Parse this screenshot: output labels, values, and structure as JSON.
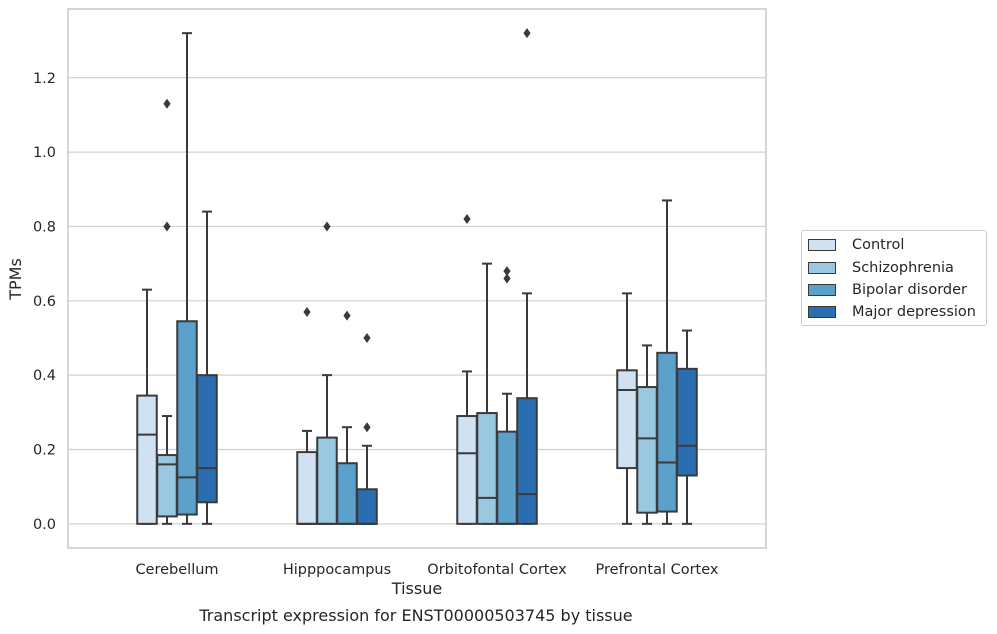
{
  "chart_data": {
    "type": "boxplot",
    "xlabel": "Tissue",
    "ylabel": "TPMs",
    "ylim": [
      -0.065,
      1.385
    ],
    "yticks": [
      0.0,
      0.2,
      0.4,
      0.6,
      0.8,
      1.0,
      1.2
    ],
    "ytick_labels": [
      "0.0",
      "0.2",
      "0.4",
      "0.6",
      "0.8",
      "1.0",
      "1.2"
    ],
    "grid": "horizontal",
    "legend_position": "right",
    "categories": [
      "Cerebellum",
      "Hipppocampus",
      "Orbitofontal Cortex",
      "Prefrontal Cortex"
    ],
    "series": [
      {
        "name": "Control",
        "color": "#d0e1f2",
        "boxes": [
          {
            "whislo": 0.0,
            "q1": 0.0,
            "med": 0.24,
            "q3": 0.345,
            "whishi": 0.63,
            "fliers": []
          },
          {
            "whislo": 0.0,
            "q1": 0.0,
            "med": 0.0,
            "q3": 0.193,
            "whishi": 0.25,
            "fliers": [
              0.57
            ]
          },
          {
            "whislo": 0.0,
            "q1": 0.0,
            "med": 0.19,
            "q3": 0.29,
            "whishi": 0.41,
            "fliers": [
              0.82
            ]
          },
          {
            "whislo": 0.0,
            "q1": 0.15,
            "med": 0.36,
            "q3": 0.413,
            "whishi": 0.62,
            "fliers": []
          }
        ]
      },
      {
        "name": "Schizophrenia",
        "color": "#9ac8e0",
        "boxes": [
          {
            "whislo": 0.0,
            "q1": 0.02,
            "med": 0.16,
            "q3": 0.185,
            "whishi": 0.29,
            "fliers": [
              0.8,
              1.13
            ]
          },
          {
            "whislo": 0.0,
            "q1": 0.0,
            "med": 0.0,
            "q3": 0.232,
            "whishi": 0.4,
            "fliers": [
              0.8
            ]
          },
          {
            "whislo": 0.0,
            "q1": 0.0,
            "med": 0.07,
            "q3": 0.298,
            "whishi": 0.7,
            "fliers": []
          },
          {
            "whislo": 0.0,
            "q1": 0.03,
            "med": 0.23,
            "q3": 0.368,
            "whishi": 0.48,
            "fliers": []
          }
        ]
      },
      {
        "name": "Bipolar disorder",
        "color": "#5b9fcb",
        "boxes": [
          {
            "whislo": 0.0,
            "q1": 0.025,
            "med": 0.125,
            "q3": 0.545,
            "whishi": 1.32,
            "fliers": []
          },
          {
            "whislo": 0.0,
            "q1": 0.0,
            "med": 0.0,
            "q3": 0.163,
            "whishi": 0.26,
            "fliers": [
              0.56
            ]
          },
          {
            "whislo": 0.0,
            "q1": 0.0,
            "med": 0.0,
            "q3": 0.248,
            "whishi": 0.35,
            "fliers": [
              0.66,
              0.68
            ]
          },
          {
            "whislo": 0.0,
            "q1": 0.033,
            "med": 0.165,
            "q3": 0.46,
            "whishi": 0.87,
            "fliers": []
          }
        ]
      },
      {
        "name": "Major depression",
        "color": "#2a6db0",
        "boxes": [
          {
            "whislo": 0.0,
            "q1": 0.058,
            "med": 0.15,
            "q3": 0.4,
            "whishi": 0.84,
            "fliers": []
          },
          {
            "whislo": 0.0,
            "q1": 0.0,
            "med": 0.0,
            "q3": 0.093,
            "whishi": 0.21,
            "fliers": [
              0.26,
              0.5
            ]
          },
          {
            "whislo": 0.0,
            "q1": 0.0,
            "med": 0.08,
            "q3": 0.338,
            "whishi": 0.62,
            "fliers": [
              1.32
            ]
          },
          {
            "whislo": 0.0,
            "q1": 0.13,
            "med": 0.21,
            "q3": 0.417,
            "whishi": 0.52,
            "fliers": []
          }
        ]
      }
    ]
  },
  "caption": "Transcript expression for ENST00000503745 by tissue",
  "colors": {
    "grid": "#d0d0d0",
    "frame": "#c8c8c8",
    "box_edge": "#3a3a3a"
  }
}
